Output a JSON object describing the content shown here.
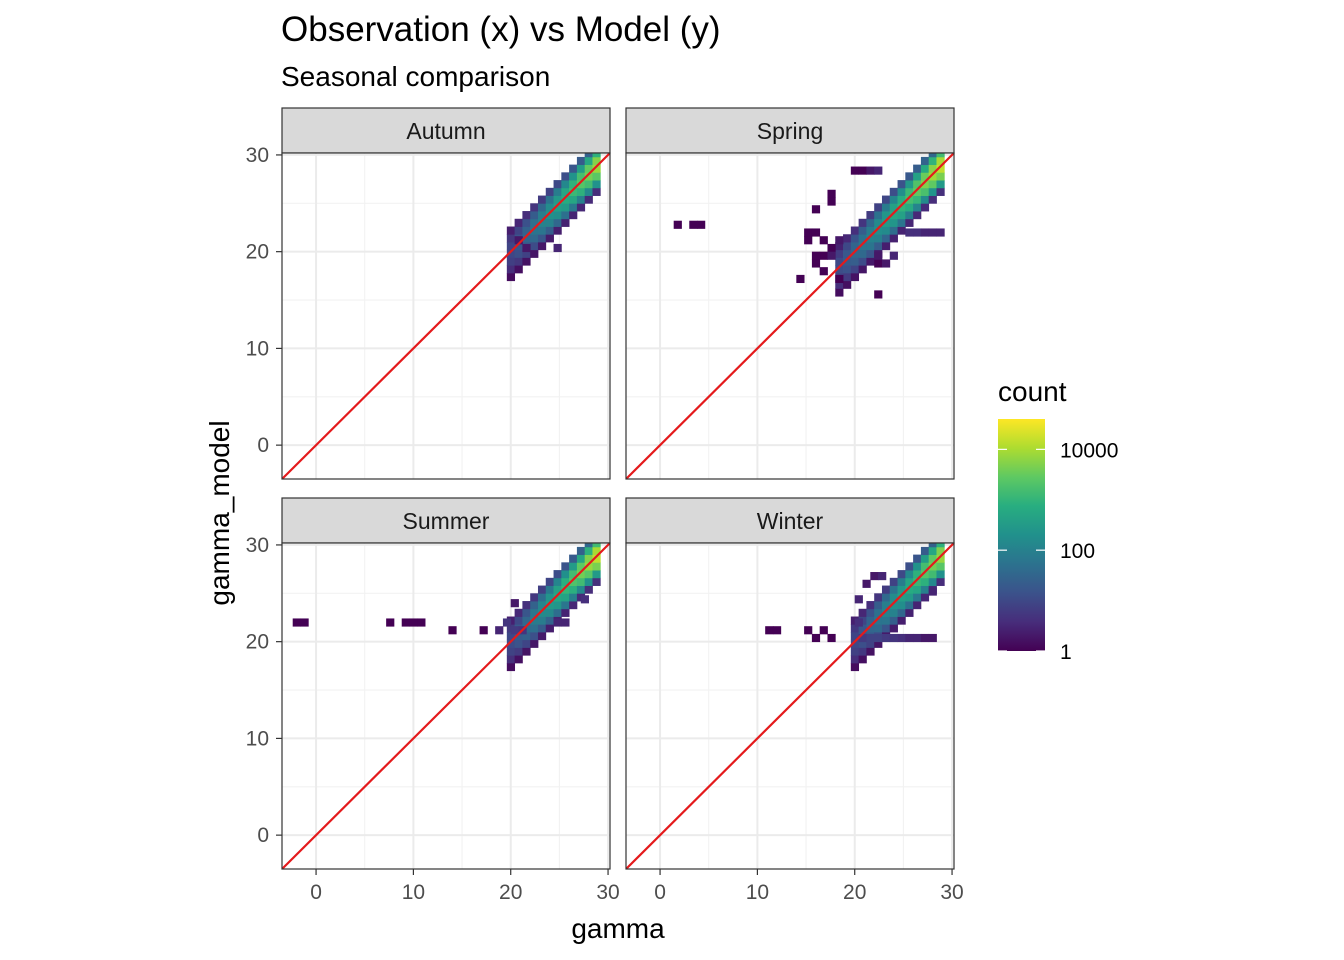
{
  "chart_data": {
    "type": "heatmap",
    "title": "Observation (x) vs Model (y)",
    "subtitle": "Seasonal comparison",
    "xlabel": "gamma",
    "ylabel": "gamma_model",
    "xlim": [
      -3.5,
      30.2
    ],
    "ylim": [
      -3.5,
      30.2
    ],
    "x_ticks": [
      0,
      10,
      20,
      30
    ],
    "y_ticks": [
      0,
      10,
      20,
      30
    ],
    "bin_width": 0.8,
    "reference_line": {
      "slope": 1,
      "intercept": 0,
      "color": "#e41a1c"
    },
    "legend": {
      "title": "count",
      "scale": "log10",
      "min": 1,
      "max": 40000,
      "breaks": [
        1,
        100,
        10000
      ],
      "break_labels": [
        "1",
        "100",
        "10000"
      ],
      "palette": "viridis",
      "position": "right"
    },
    "facets": [
      {
        "name": "Autumn",
        "clusters": [
          {
            "type": "band",
            "x0": 20,
            "x1": 28.8,
            "halfwidth": 2.6,
            "max_count": 8000
          },
          {
            "type": "points",
            "points": [
              [
                21.6,
                20.4,
                2
              ],
              [
                24.8,
                20.4,
                3
              ],
              [
                20.8,
                21.2,
                2
              ]
            ]
          }
        ]
      },
      {
        "name": "Spring",
        "clusters": [
          {
            "type": "band",
            "x0": 18.4,
            "x1": 29.2,
            "halfwidth": 2.6,
            "max_count": 20000
          },
          {
            "type": "points",
            "points": [
              [
                1.8,
                22.8,
                1
              ],
              [
                3.4,
                22.8,
                1
              ],
              [
                4.2,
                22.8,
                1
              ],
              [
                16.0,
                24.4,
                1
              ],
              [
                17.6,
                25.2,
                1
              ],
              [
                17.6,
                26.0,
                1
              ],
              [
                20.0,
                28.4,
                1
              ],
              [
                20.8,
                28.4,
                1
              ],
              [
                21.6,
                28.4,
                2
              ],
              [
                22.4,
                28.4,
                3
              ],
              [
                15.2,
                22.0,
                1
              ],
              [
                16.0,
                22.0,
                1
              ],
              [
                15.2,
                21.2,
                1
              ],
              [
                16.8,
                21.2,
                1
              ],
              [
                18.4,
                21.2,
                2
              ],
              [
                17.6,
                20.4,
                1
              ],
              [
                16.8,
                19.6,
                1
              ],
              [
                17.6,
                19.6,
                2
              ],
              [
                16.0,
                19.6,
                1
              ],
              [
                16.0,
                18.8,
                1
              ],
              [
                16.8,
                18.0,
                1
              ],
              [
                14.4,
                17.2,
                1
              ],
              [
                18.4,
                17.2,
                1
              ],
              [
                22.4,
                18.8,
                1
              ],
              [
                23.2,
                18.8,
                2
              ],
              [
                22.4,
                19.6,
                2
              ],
              [
                24.0,
                19.6,
                3
              ],
              [
                25.6,
                22.0,
                4
              ],
              [
                26.4,
                22.0,
                4
              ],
              [
                27.2,
                22.0,
                3
              ],
              [
                28.0,
                22.0,
                3
              ],
              [
                28.8,
                22.0,
                3
              ],
              [
                22.4,
                15.6,
                1
              ]
            ]
          }
        ]
      },
      {
        "name": "Summer",
        "clusters": [
          {
            "type": "band",
            "x0": 20,
            "x1": 28.8,
            "halfwidth": 2.6,
            "max_count": 15000
          },
          {
            "type": "points",
            "points": [
              [
                -2.0,
                22.0,
                1
              ],
              [
                -1.2,
                22.0,
                1
              ],
              [
                7.6,
                22.0,
                1
              ],
              [
                9.2,
                22.0,
                1
              ],
              [
                10.0,
                22.0,
                1
              ],
              [
                10.8,
                22.0,
                1
              ],
              [
                14.0,
                21.2,
                1
              ],
              [
                17.2,
                21.2,
                1
              ],
              [
                18.8,
                21.2,
                3
              ],
              [
                19.6,
                22.0,
                5
              ],
              [
                20.4,
                21.2,
                6
              ],
              [
                21.2,
                21.2,
                5
              ],
              [
                20.4,
                24.0,
                2
              ],
              [
                24.8,
                22.0,
                3
              ],
              [
                25.6,
                22.0,
                3
              ],
              [
                27.6,
                24.4,
                4
              ]
            ]
          }
        ]
      },
      {
        "name": "Winter",
        "clusters": [
          {
            "type": "band",
            "x0": 20,
            "x1": 29.2,
            "halfwidth": 2.6,
            "max_count": 10000
          },
          {
            "type": "points",
            "points": [
              [
                11.2,
                21.2,
                1
              ],
              [
                12.0,
                21.2,
                1
              ],
              [
                15.2,
                21.2,
                1
              ],
              [
                16.0,
                20.4,
                1
              ],
              [
                16.8,
                21.2,
                1
              ],
              [
                17.6,
                20.4,
                1
              ],
              [
                20.8,
                20.4,
                6
              ],
              [
                21.6,
                20.4,
                8
              ],
              [
                22.4,
                20.4,
                8
              ],
              [
                23.2,
                20.4,
                6
              ],
              [
                24.0,
                20.4,
                5
              ],
              [
                24.8,
                20.4,
                4
              ],
              [
                25.6,
                20.4,
                3
              ],
              [
                26.4,
                20.4,
                3
              ],
              [
                27.2,
                20.4,
                2
              ],
              [
                28.0,
                20.4,
                2
              ],
              [
                20.4,
                22.0,
                4
              ],
              [
                20.4,
                24.4,
                3
              ],
              [
                21.2,
                26.0,
                2
              ],
              [
                22.0,
                26.8,
                2
              ],
              [
                22.8,
                26.8,
                3
              ],
              [
                28.0,
                25.2,
                3
              ]
            ]
          }
        ]
      }
    ]
  }
}
